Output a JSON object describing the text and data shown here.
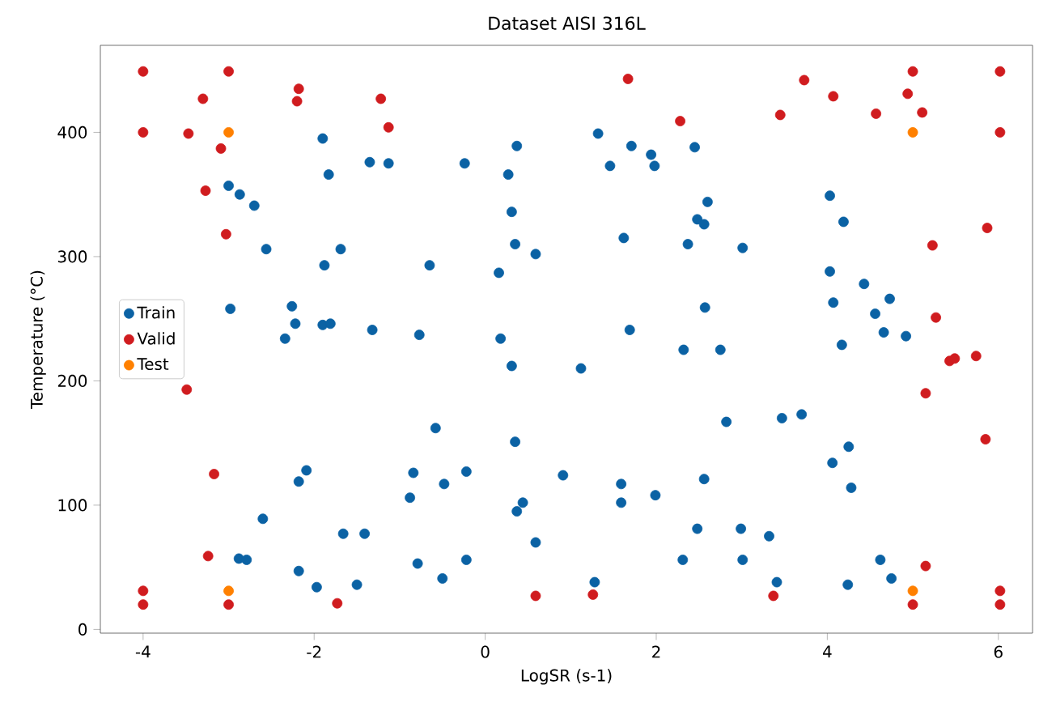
{
  "chart_data": {
    "type": "scatter",
    "title": "Dataset AISI 316L",
    "xlabel": "LogSR (s-1)",
    "ylabel": "Temperature (°C)",
    "xlim": [
      -4.5,
      6.4
    ],
    "ylim": [
      -3,
      470
    ],
    "xticks": [
      -4,
      -2,
      0,
      2,
      4,
      6
    ],
    "yticks": [
      0,
      100,
      200,
      300,
      400
    ],
    "legend": "left",
    "marker": "circle",
    "grid": false,
    "series": [
      {
        "name": "Train",
        "color": "#0b62a4",
        "x": [
          -1.9,
          -1.83,
          -1.35,
          -1.13,
          -3.0,
          -2.87,
          -2.7,
          -2.56,
          -1.69,
          -1.88,
          -2.98,
          -2.26,
          -2.22,
          -2.34,
          -1.9,
          -1.81,
          -1.32,
          -0.77,
          1.32,
          1.71,
          1.94,
          1.98,
          1.46,
          2.45,
          0.37,
          -0.24,
          0.27,
          2.6,
          2.48,
          2.56,
          0.31,
          1.62,
          2.37,
          0.35,
          0.59,
          -0.65,
          0.16,
          2.57,
          0.18,
          1.69,
          2.32,
          2.75,
          0.31,
          1.12,
          4.03,
          4.19,
          3.01,
          4.03,
          4.07,
          4.43,
          4.73,
          4.56,
          4.66,
          4.92,
          4.17,
          -2.09,
          -2.18,
          -2.6,
          -0.84,
          -0.88,
          -1.66,
          -1.41,
          -2.88,
          -2.79,
          -2.18,
          -1.97,
          -1.5,
          -0.79,
          -0.58,
          0.35,
          2.82,
          -0.22,
          -0.48,
          0.91,
          1.59,
          1.59,
          1.99,
          2.56,
          0.44,
          0.37,
          2.48,
          0.59,
          -0.22,
          -0.5,
          2.31,
          1.28,
          3.47,
          3.7,
          4.25,
          4.06,
          4.28,
          2.99,
          3.32,
          3.01,
          3.41,
          4.24,
          4.62,
          4.75
        ],
        "values": [
          395,
          366,
          376,
          375,
          357,
          350,
          341,
          306,
          306,
          293,
          258,
          260,
          246,
          234,
          245,
          246,
          241,
          237,
          399,
          389,
          382,
          373,
          373,
          388,
          389,
          375,
          366,
          344,
          330,
          326,
          336,
          315,
          310,
          310,
          302,
          293,
          287,
          259,
          234,
          241,
          225,
          225,
          212,
          210,
          349,
          328,
          307,
          288,
          263,
          278,
          266,
          254,
          239,
          236,
          229,
          128,
          119,
          89,
          126,
          106,
          77,
          77,
          57,
          56,
          47,
          34,
          36,
          53,
          162,
          151,
          167,
          127,
          117,
          124,
          117,
          102,
          108,
          121,
          102,
          95,
          81,
          70,
          56,
          41,
          56,
          38,
          170,
          173,
          147,
          134,
          114,
          81,
          75,
          56,
          38,
          36,
          56,
          41
        ]
      },
      {
        "name": "Valid",
        "color": "#d01c1f",
        "x": [
          -4.0,
          -3.0,
          -3.3,
          -2.18,
          -2.2,
          -1.22,
          -1.13,
          -4.0,
          -3.47,
          -3.09,
          -3.27,
          -3.03,
          1.67,
          2.28,
          3.73,
          5.0,
          6.02,
          4.07,
          4.94,
          3.45,
          4.57,
          5.11,
          6.02,
          5.87,
          5.23,
          5.27,
          5.43,
          5.49,
          5.74,
          -3.49,
          -3.17,
          -3.24,
          -4.0,
          -4.0,
          -3.0,
          -1.73,
          0.59,
          1.26,
          3.37,
          5.15,
          5.85,
          5.15,
          5.0,
          6.02,
          6.02
        ],
        "values": [
          449,
          449,
          427,
          435,
          425,
          427,
          404,
          400,
          399,
          387,
          353,
          318,
          443,
          409,
          442,
          449,
          449,
          429,
          431,
          414,
          415,
          416,
          400,
          323,
          309,
          251,
          216,
          218,
          220,
          193,
          125,
          59,
          31,
          20,
          20,
          21,
          27,
          28,
          27,
          190,
          153,
          51,
          20,
          31,
          20
        ]
      },
      {
        "name": "Test",
        "color": "#ff8000",
        "x": [
          -3.0,
          5.0,
          -3.0,
          5.0
        ],
        "values": [
          400,
          400,
          31,
          31
        ]
      }
    ]
  }
}
